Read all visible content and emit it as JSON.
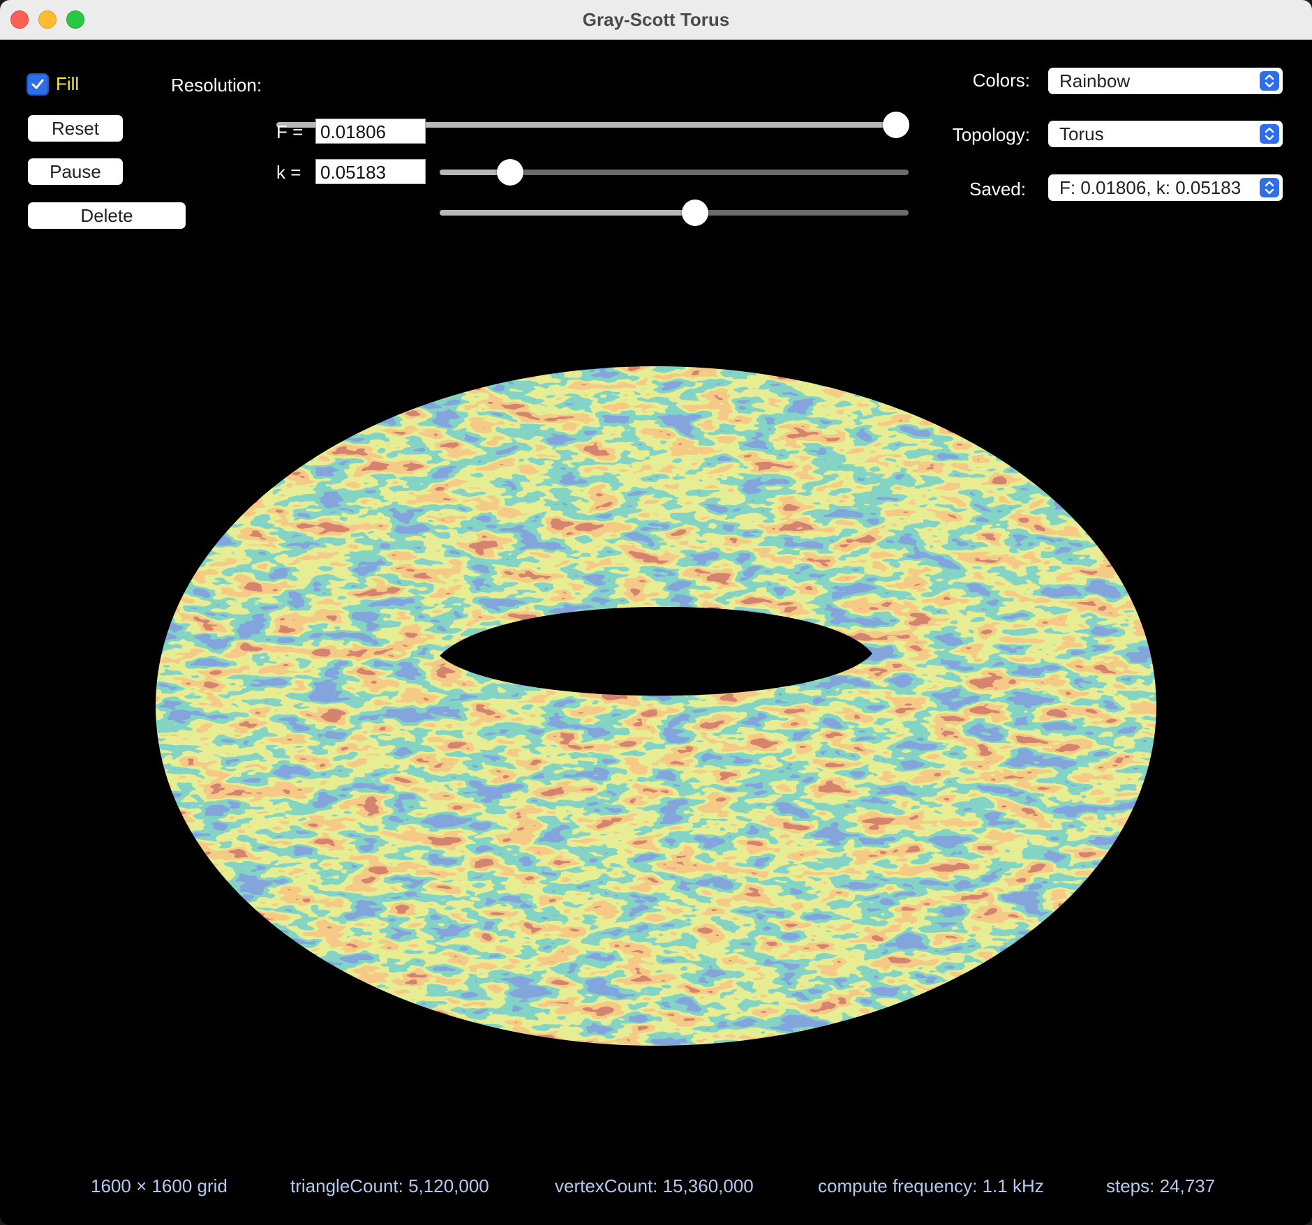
{
  "window": {
    "title": "Gray-Scott Torus"
  },
  "controls": {
    "fill_label": "Fill",
    "fill_checked": true,
    "reset_label": "Reset",
    "pause_label": "Pause",
    "delete_label": "Delete",
    "resolution_label": "Resolution:",
    "resolution_level": 1.0,
    "f_label": "F =",
    "f_value": "0.01806",
    "f_slider_level": 0.15,
    "k_label": "k =",
    "k_value": "0.05183",
    "k_slider_level": 0.545
  },
  "options": {
    "colors_label": "Colors:",
    "colors_value": "Rainbow",
    "topology_label": "Topology:",
    "topology_value": "Torus",
    "saved_label": "Saved:",
    "saved_value": "F: 0.01806, k: 0.05183"
  },
  "status": {
    "grid": "1600 × 1600 grid",
    "triangles": "triangleCount: 5,120,000",
    "vertices": "vertexCount: 15,360,000",
    "frequency": "compute frequency: 1.1 kHz",
    "steps": "steps: 24,737"
  },
  "colors": {
    "accent": "#2e6fe9",
    "fill_label": "#f4e93a",
    "status_text": "#b7c8ef",
    "rainbow": [
      "#a83a2a",
      "#e8973e",
      "#c9d84a",
      "#3aa88c",
      "#3a62b8"
    ]
  }
}
